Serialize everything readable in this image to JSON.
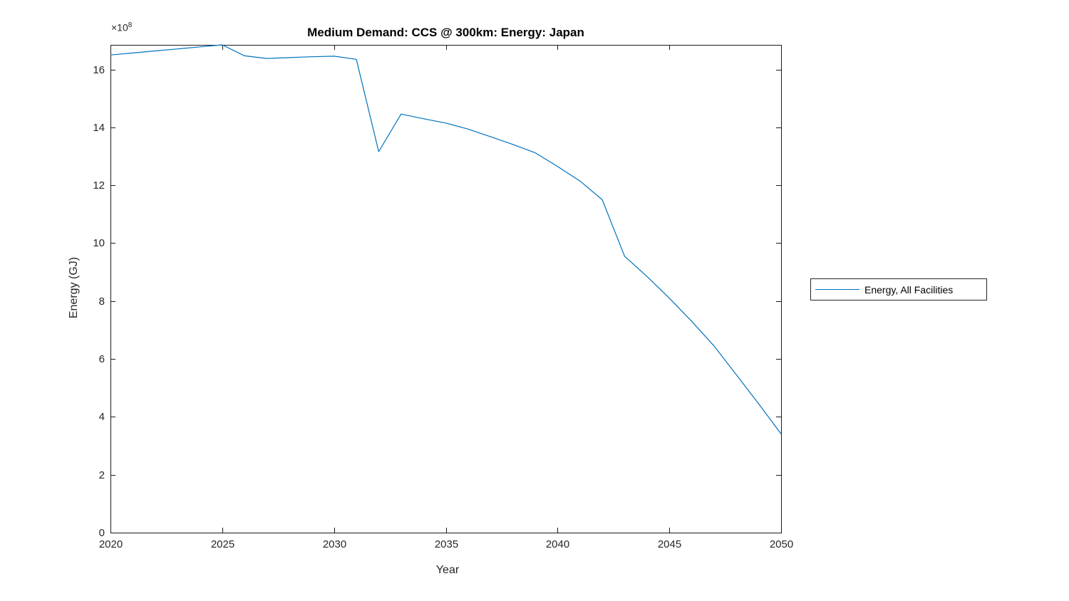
{
  "chart": {
    "title": "Medium Demand: CCS @ 300km: Energy: Japan",
    "xlabel": "Year",
    "ylabel": "Energy (GJ)",
    "y_multiplier": {
      "base": "×10",
      "exp": "8"
    }
  },
  "chart_data": {
    "type": "line",
    "title": "Medium Demand: CCS @ 300km: Energy: Japan",
    "xlabel": "Year",
    "ylabel": "Energy (GJ)",
    "y_unit_multiplier": "1e8 GJ",
    "grid": false,
    "legend_position": "right-outside",
    "xlim": [
      2020,
      2050
    ],
    "ylim_1e8": [
      0,
      16.85
    ],
    "xticks": [
      2020,
      2025,
      2030,
      2035,
      2040,
      2045,
      2050
    ],
    "yticks": [
      0,
      2,
      4,
      6,
      8,
      10,
      12,
      14,
      16
    ],
    "series": [
      {
        "name": "Energy, All Facilities",
        "color": "#0072BD",
        "x": [
          2020,
          2021,
          2022,
          2023,
          2024,
          2025,
          2026,
          2027,
          2028,
          2029,
          2030,
          2031,
          2032,
          2033,
          2034,
          2035,
          2036,
          2037,
          2038,
          2039,
          2040,
          2041,
          2042,
          2043,
          2044,
          2045,
          2046,
          2047,
          2048,
          2049,
          2050
        ],
        "values_1e8": [
          16.5,
          16.57,
          16.64,
          16.71,
          16.78,
          16.85,
          16.47,
          16.38,
          16.41,
          16.44,
          16.46,
          16.35,
          13.16,
          14.46,
          14.3,
          14.15,
          13.94,
          13.68,
          13.41,
          13.12,
          12.65,
          12.15,
          11.5,
          9.55,
          8.85,
          8.1,
          7.3,
          6.45,
          5.45,
          4.45,
          3.41
        ]
      }
    ]
  }
}
